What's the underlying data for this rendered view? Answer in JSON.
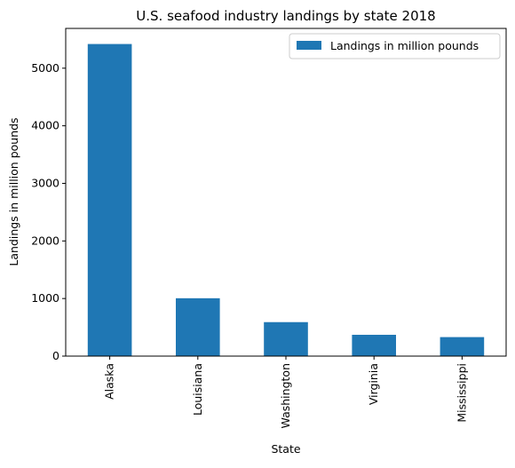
{
  "chart_data": {
    "type": "bar",
    "title": "U.S. seafood industry landings by state 2018",
    "xlabel": "State",
    "ylabel": "Landings in million pounds",
    "categories": [
      "Alaska",
      "Louisiana",
      "Washington",
      "Virginia",
      "Mississippi"
    ],
    "series": [
      {
        "name": "Landings in million pounds",
        "values": [
          5420,
          1005,
          590,
          370,
          330
        ],
        "color": "#1f77b4"
      }
    ],
    "ylim": [
      0,
      5691
    ],
    "yticks": [
      0,
      1000,
      2000,
      3000,
      4000,
      5000
    ],
    "grid": false,
    "legend_position": "top-right"
  }
}
